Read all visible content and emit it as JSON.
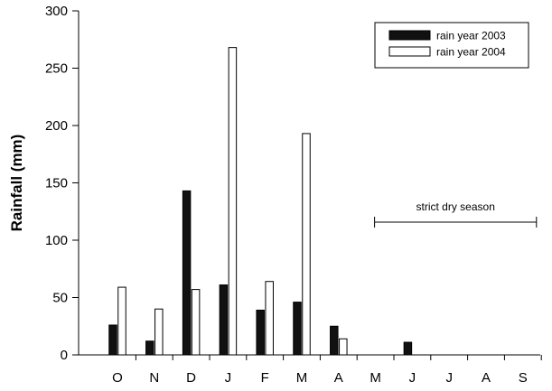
{
  "chart_data": {
    "type": "bar",
    "categories": [
      "O",
      "N",
      "D",
      "J",
      "F",
      "M",
      "A",
      "M",
      "J",
      "J",
      "A",
      "S"
    ],
    "series": [
      {
        "name": "rain year 2003",
        "color": "#000000",
        "fill": "solid",
        "values": [
          26,
          12,
          143,
          61,
          39,
          46,
          25,
          0,
          11,
          0,
          0,
          0
        ]
      },
      {
        "name": "rain year 2004",
        "color": "#ffffff",
        "fill": "hollow",
        "values": [
          59,
          40,
          57,
          268,
          64,
          193,
          14,
          0,
          0,
          0,
          0,
          0
        ]
      }
    ],
    "xlabel": "",
    "ylabel": "Rainfall (mm)",
    "ylim": [
      0,
      300
    ],
    "yticks": [
      0,
      50,
      100,
      150,
      200,
      250,
      300
    ],
    "grid": false,
    "legend_position": "top-right",
    "annotation": {
      "text": "strict dry season",
      "from_category": "M",
      "to_category": "S"
    }
  }
}
